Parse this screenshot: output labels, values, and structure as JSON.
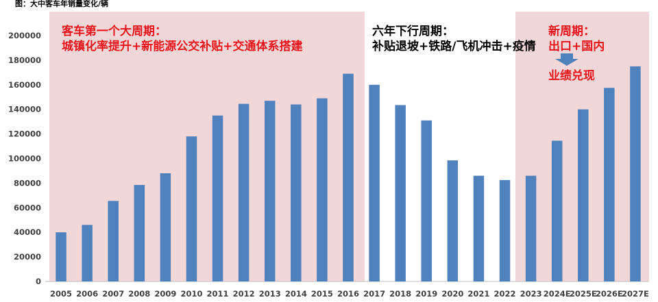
{
  "chart_data": {
    "type": "bar",
    "title": "图：大中客车年销量变化/辆",
    "xlabel": "",
    "ylabel": "",
    "categories": [
      "2005",
      "2006",
      "2007",
      "2008",
      "2009",
      "2010",
      "2011",
      "2012",
      "2013",
      "2014",
      "2015",
      "2016",
      "2017",
      "2018",
      "2019",
      "2020",
      "2021",
      "2022",
      "2023",
      "2024E",
      "2025E",
      "2026E",
      "2027E"
    ],
    "values": [
      40000,
      46000,
      65500,
      78500,
      88000,
      118000,
      135000,
      144500,
      147000,
      144000,
      149000,
      169000,
      160000,
      143500,
      131000,
      98500,
      86000,
      82500,
      86000,
      114500,
      140000,
      157500,
      175000
    ],
    "ylim": [
      0,
      200000
    ],
    "yticks": [
      0,
      20000,
      40000,
      60000,
      80000,
      100000,
      120000,
      140000,
      160000,
      180000,
      200000
    ],
    "grid": false,
    "colors": {
      "bar": "#4f81bd",
      "region": "#f2d7d9",
      "annotation_red": "#e8141b",
      "arrow": "#4f81bd"
    },
    "regions": [
      {
        "from": "2005",
        "to": "2016",
        "lines": [
          "客车第一个大周期：",
          "城镇化率提升+新能源公交补贴+交通体系搭建"
        ],
        "color": "red"
      },
      {
        "from": "2017",
        "to": "2022",
        "lines": [
          "六年下行周期：",
          "补贴退坡+铁路/飞机冲击+疫情"
        ],
        "color": "black"
      },
      {
        "from": "2023",
        "to": "2027E",
        "lines": [
          "新周期：",
          "出口+国内"
        ],
        "color": "red",
        "after_arrow": "业绩兑现"
      }
    ]
  }
}
